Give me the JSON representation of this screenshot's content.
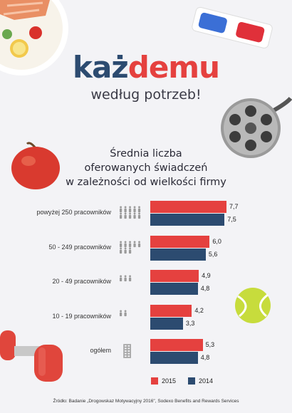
{
  "brand": {
    "part1": "każ",
    "part2": "demu"
  },
  "tagline": "według potrzeb!",
  "chart_data": {
    "type": "bar",
    "orientation": "horizontal",
    "title_lines": [
      "Średnia liczba",
      "oferowanych świadczeń",
      "w zależności od wielkości firmy"
    ],
    "categories": [
      "powyżej 250 pracowników",
      "50 - 249 pracowników",
      "20 - 49 pracowników",
      "10 - 19 pracowników",
      "ogółem"
    ],
    "series": [
      {
        "name": "2015",
        "color": "#e5413f",
        "values": [
          7.7,
          6.0,
          4.9,
          4.2,
          5.3
        ],
        "labels": [
          "7,7",
          "6,0",
          "4,9",
          "4,2",
          "5,3"
        ]
      },
      {
        "name": "2014",
        "color": "#2c4b70",
        "values": [
          7.5,
          5.6,
          4.8,
          3.3,
          4.8
        ],
        "labels": [
          "7,5",
          "5,6",
          "4,8",
          "3,3",
          "4,8"
        ]
      }
    ],
    "xlim": [
      0,
      8.5
    ],
    "grid": false,
    "legend": "bottom-right"
  },
  "source": "Źródło: Badanie „Drogowskaz Motywacyjny 2016\", Sodexo Benefits and Rewards Services",
  "icons": [
    "food-plate-icon",
    "3d-glasses-icon",
    "film-reel-icon",
    "apple-icon",
    "tennis-ball-icon",
    "dumbbell-icon",
    "people-icon",
    "building-icon"
  ]
}
